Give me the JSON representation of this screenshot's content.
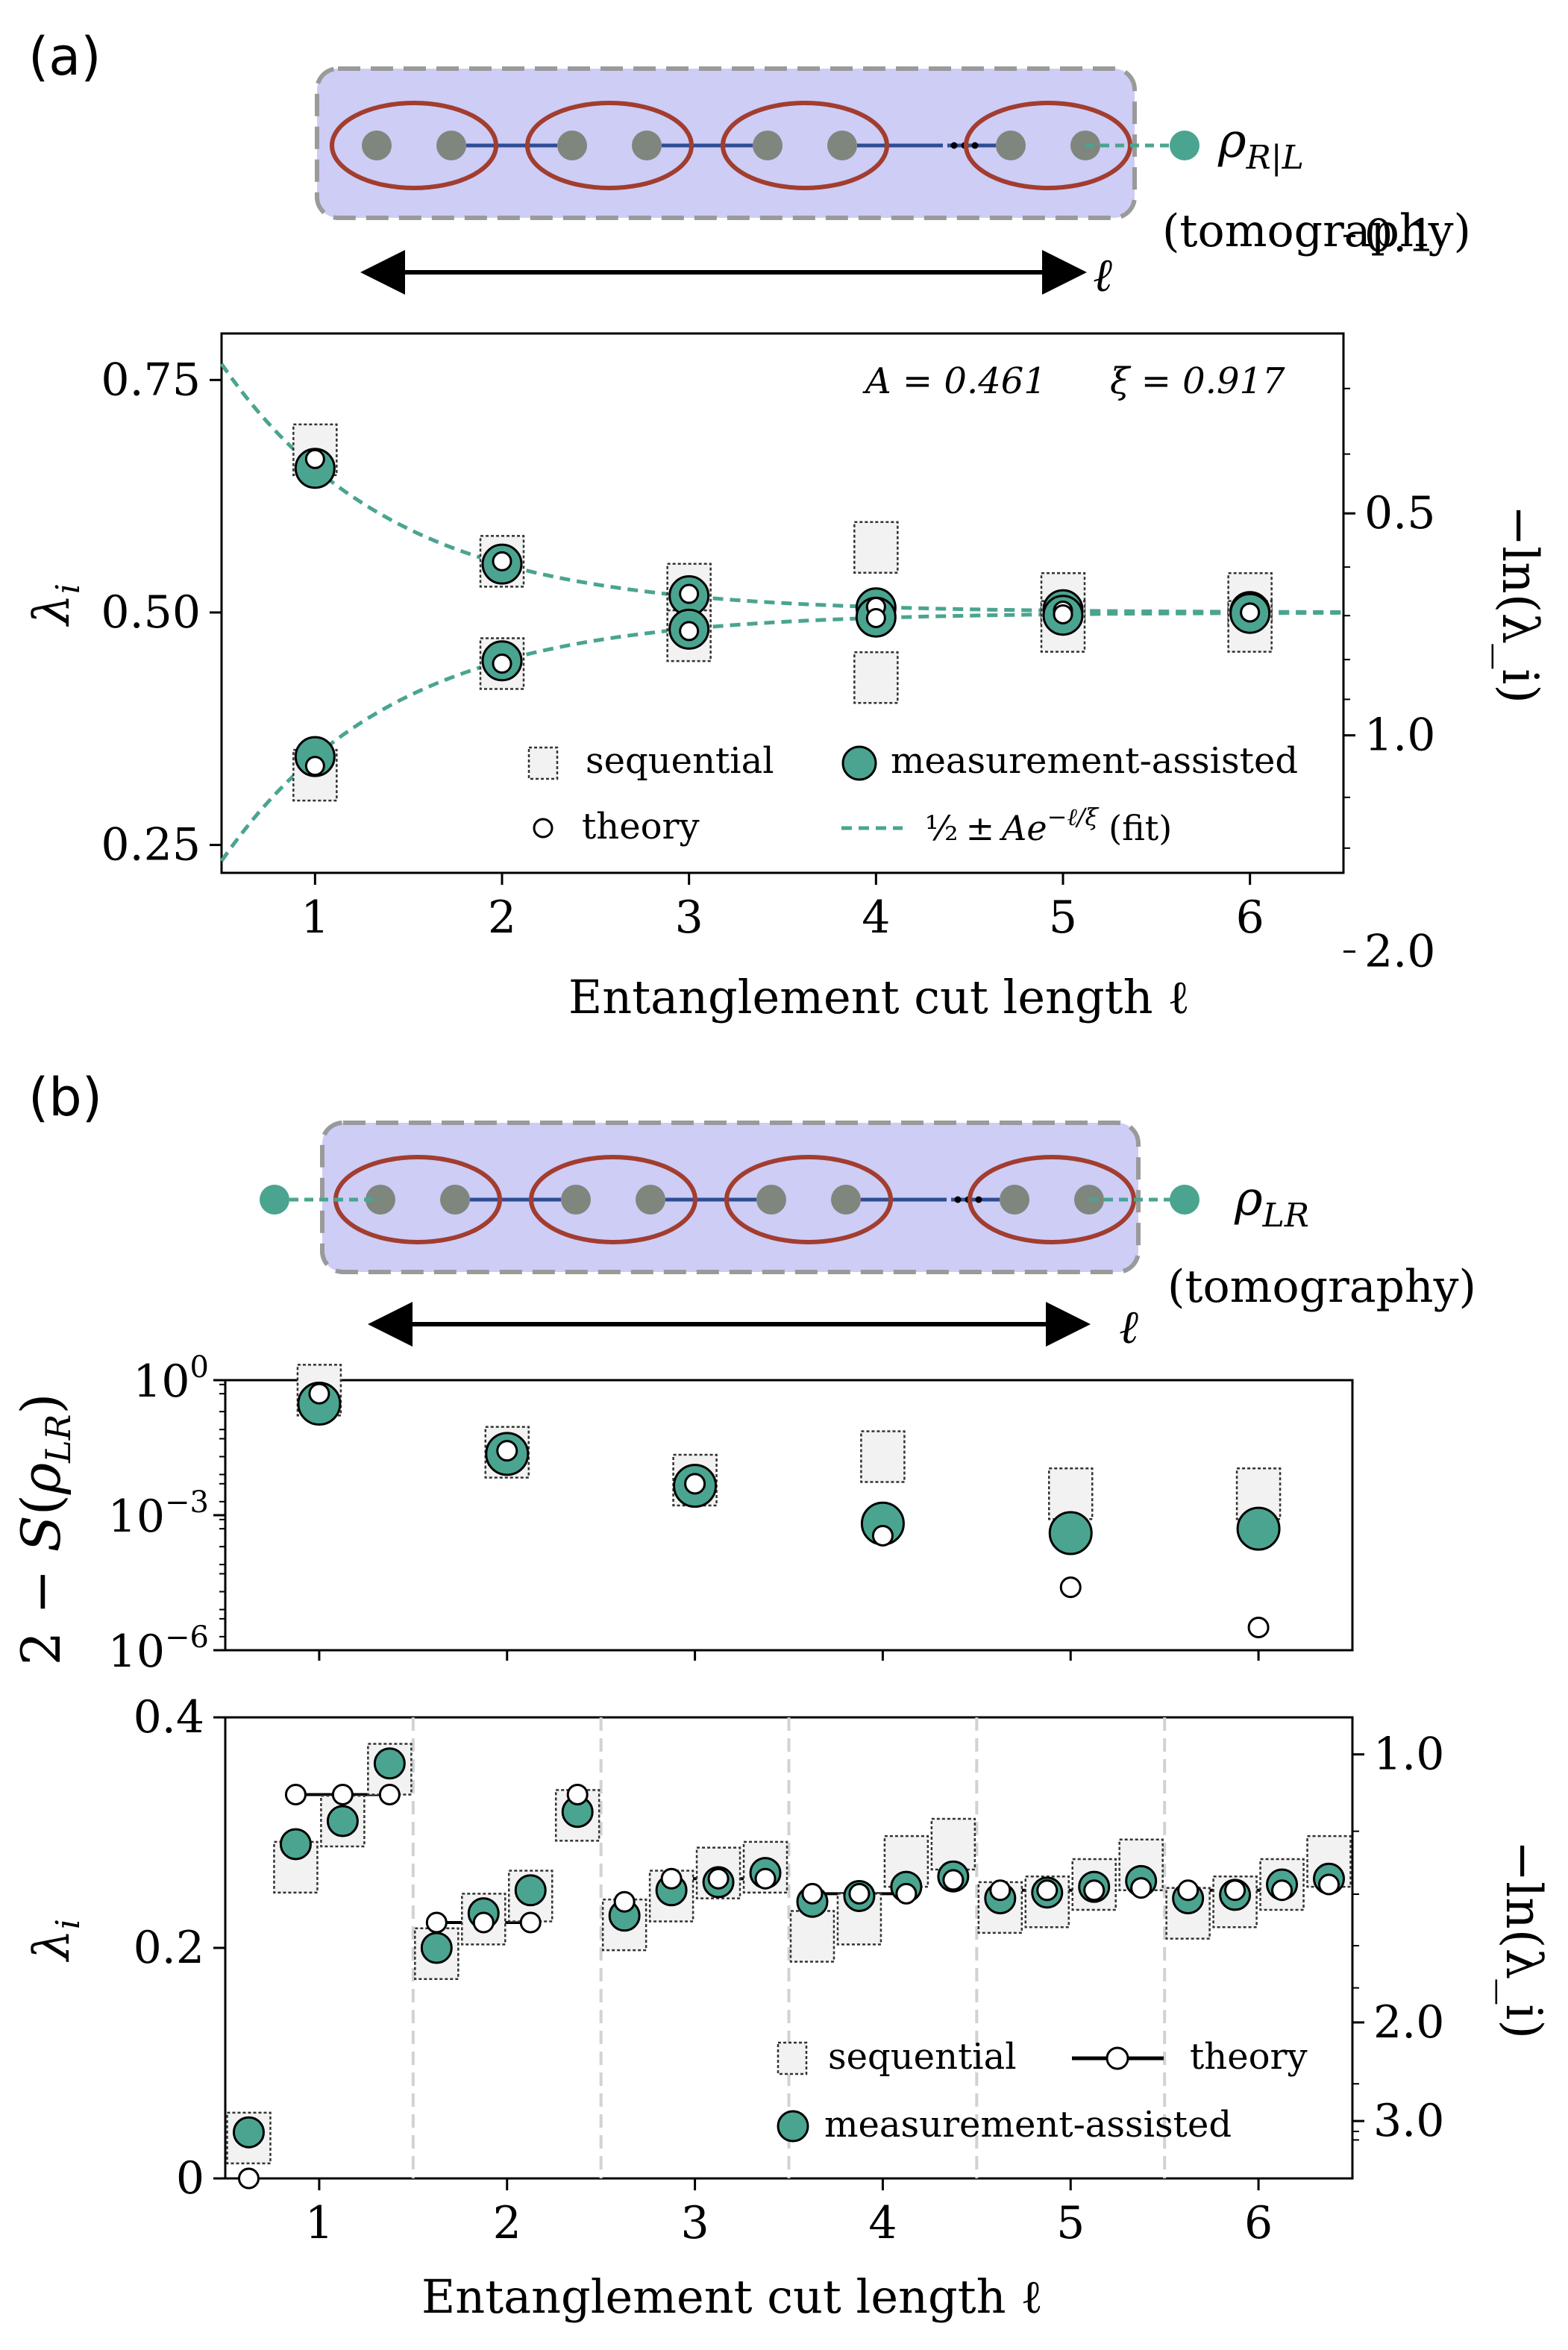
{
  "colors": {
    "teal": "#4aa490",
    "box_fill": "#ebe9f7",
    "schematic_bg": "#cdcdf6",
    "oval": "#a23d2f",
    "node": "#7f867d",
    "chain": "#2f4d94",
    "seq_fill": "#f2f2f2"
  },
  "panel_a": {
    "label": "(a)",
    "rho_main": "ρ",
    "rho_sub": "R|L",
    "tomography": "(tomography)",
    "ell": "ℓ",
    "ellipsis": "⋯"
  },
  "panel_b": {
    "label": "(b)",
    "rho_main": "ρ",
    "rho_sub": "LR",
    "tomography": "(tomography)",
    "ell": "ℓ",
    "ellipsis": "⋯"
  },
  "chart_data": [
    {
      "id": "a",
      "type": "scatter",
      "xlabel": "Entanglement cut length ℓ",
      "ylabel": "λ_i",
      "ylabel_right": "−ln(λ_i)",
      "xlim": [
        0.5,
        6.5
      ],
      "ylim": [
        0.22,
        0.8
      ],
      "xticks": [
        1,
        2,
        3,
        4,
        5,
        6
      ],
      "xtick_labels": [
        "1",
        "2",
        "3",
        "4",
        "5",
        "6"
      ],
      "yticks": [
        0.25,
        0.5,
        0.75
      ],
      "ytick_labels": [
        "0.25",
        "0.50",
        "0.75"
      ],
      "right_ticks": [
        0.1,
        0.5,
        1.0,
        2.0
      ],
      "right_tick_labels": [
        "0.1",
        "0.5",
        "1.0",
        "2.0"
      ],
      "annotation_A": "A = 0.461",
      "annotation_xi": "ξ = 0.917",
      "fit": {
        "A": 0.461,
        "xi": 0.917
      },
      "series": [
        {
          "name": "sequential",
          "points": [
            [
              1,
              0.675
            ],
            [
              1,
              0.325
            ],
            [
              2,
              0.555
            ],
            [
              2,
              0.445
            ],
            [
              3,
              0.525
            ],
            [
              3,
              0.475
            ],
            [
              4,
              0.57
            ],
            [
              4,
              0.43
            ],
            [
              5,
              0.515
            ],
            [
              5,
              0.485
            ],
            [
              6,
              0.515
            ],
            [
              6,
              0.485
            ]
          ]
        },
        {
          "name": "measurement-assisted",
          "points": [
            [
              1,
              0.655
            ],
            [
              1,
              0.345
            ],
            [
              2,
              0.552
            ],
            [
              2,
              0.448
            ],
            [
              3,
              0.518
            ],
            [
              3,
              0.482
            ],
            [
              4,
              0.505
            ],
            [
              4,
              0.495
            ],
            [
              5,
              0.503
            ],
            [
              5,
              0.497
            ],
            [
              6,
              0.501
            ],
            [
              6,
              0.499
            ]
          ]
        },
        {
          "name": "theory",
          "points": [
            [
              1,
              0.665
            ],
            [
              1,
              0.335
            ],
            [
              2,
              0.555
            ],
            [
              2,
              0.445
            ],
            [
              3,
              0.52
            ],
            [
              3,
              0.48
            ],
            [
              4,
              0.506
            ],
            [
              4,
              0.494
            ],
            [
              5,
              0.502
            ],
            [
              5,
              0.498
            ],
            [
              6,
              0.5
            ],
            [
              6,
              0.5
            ]
          ]
        }
      ],
      "legend": {
        "sequential": "sequential",
        "measurement": "measurement-assisted",
        "theory": "theory",
        "fit": "½ ± Ae^{−ℓ/ξ} (fit)",
        "fit_main": "±",
        "fit_half": "½",
        "fit_exp": "−ℓ/ξ",
        "fit_tail": "(fit)",
        "fit_A": "Ae"
      }
    },
    {
      "id": "b-top",
      "type": "scatter",
      "ylabel": "2 − S(ρ_LR)",
      "yscale": "log",
      "ylim_exp": [
        -6,
        0
      ],
      "ytick_labels": [
        {
          "base": "10",
          "exp": "0"
        },
        {
          "base": "10",
          "exp": "−3"
        },
        {
          "base": "10",
          "exp": "−6"
        }
      ],
      "xlim": [
        0.5,
        6.5
      ],
      "series": [
        {
          "name": "sequential",
          "points": [
            [
              1,
              0.6
            ],
            [
              2,
              0.025
            ],
            [
              3,
              0.006
            ],
            [
              4,
              0.02
            ],
            [
              5,
              0.003
            ],
            [
              6,
              0.003
            ]
          ]
        },
        {
          "name": "measurement-assisted",
          "points": [
            [
              1,
              0.3
            ],
            [
              2,
              0.023
            ],
            [
              3,
              0.0045
            ],
            [
              4,
              0.00065
            ],
            [
              5,
              0.0004
            ],
            [
              6,
              0.0005
            ]
          ]
        },
        {
          "name": "theory",
          "points": [
            [
              1,
              0.5
            ],
            [
              2,
              0.027
            ],
            [
              3,
              0.005
            ],
            [
              4,
              0.00035
            ],
            [
              5,
              2.5e-05
            ],
            [
              6,
              3.2e-06
            ]
          ]
        }
      ]
    },
    {
      "id": "b-bottom",
      "type": "scatter",
      "xlabel": "Entanglement cut length ℓ",
      "ylabel": "λ_i",
      "ylabel_right": "−ln(λ_i)",
      "xlim": [
        0.5,
        6.5
      ],
      "ylim": [
        0,
        0.4
      ],
      "xticks": [
        1,
        2,
        3,
        4,
        5,
        6
      ],
      "xtick_labels": [
        "1",
        "2",
        "3",
        "4",
        "5",
        "6"
      ],
      "yticks": [
        0,
        0.2,
        0.4
      ],
      "ytick_labels": [
        "0",
        "0.2",
        "0.4"
      ],
      "right_ticks": [
        1.0,
        2.0,
        3.0
      ],
      "right_tick_labels": [
        "1.0",
        "2.0",
        "3.0"
      ],
      "offsets": [
        -0.375,
        -0.125,
        0.125,
        0.375
      ],
      "groups": [
        {
          "ell": 1,
          "sequential": [
            0.035,
            0.27,
            0.31,
            0.355
          ],
          "measurement": [
            0.04,
            0.29,
            0.31,
            0.36
          ],
          "theory": [
            0.0,
            0.333,
            0.333,
            0.333
          ]
        },
        {
          "ell": 2,
          "sequential": [
            0.195,
            0.225,
            0.245,
            0.315
          ],
          "measurement": [
            0.2,
            0.23,
            0.25,
            0.318
          ],
          "theory": [
            0.222,
            0.222,
            0.222,
            0.333
          ]
        },
        {
          "ell": 3,
          "sequential": [
            0.22,
            0.245,
            0.265,
            0.27
          ],
          "measurement": [
            0.228,
            0.25,
            0.257,
            0.265
          ],
          "theory": [
            0.24,
            0.26,
            0.26,
            0.26
          ]
        },
        {
          "ell": 4,
          "sequential": [
            0.21,
            0.225,
            0.275,
            0.29
          ],
          "measurement": [
            0.24,
            0.245,
            0.253,
            0.262
          ],
          "theory": [
            0.247,
            0.247,
            0.247,
            0.259
          ]
        },
        {
          "ell": 5,
          "sequential": [
            0.235,
            0.24,
            0.255,
            0.272
          ],
          "measurement": [
            0.243,
            0.248,
            0.253,
            0.258
          ],
          "theory": [
            0.25,
            0.25,
            0.25,
            0.252
          ]
        },
        {
          "ell": 6,
          "sequential": [
            0.23,
            0.24,
            0.255,
            0.275
          ],
          "measurement": [
            0.243,
            0.246,
            0.255,
            0.26
          ],
          "theory": [
            0.25,
            0.25,
            0.25,
            0.255
          ]
        }
      ],
      "legend": {
        "sequential": "sequential",
        "theory": "theory",
        "measurement": "measurement-assisted"
      }
    }
  ]
}
